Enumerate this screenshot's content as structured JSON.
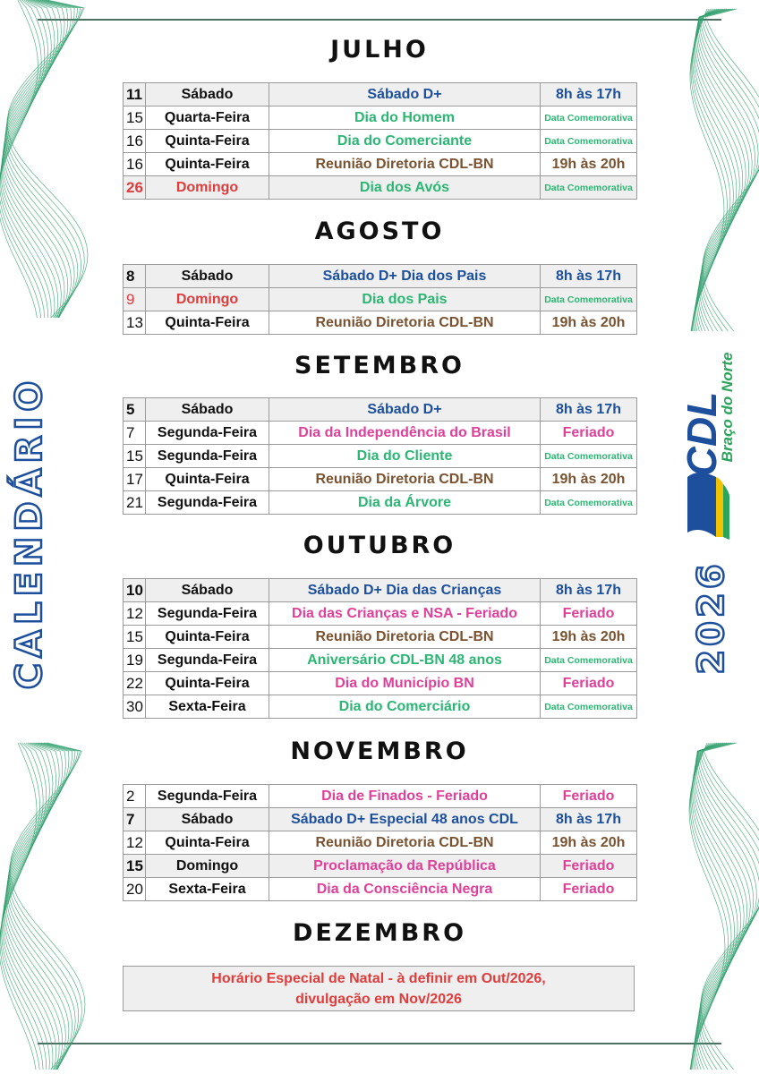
{
  "colors": {
    "sabado": "#1c4f9c",
    "comemorativa": "#2bb673",
    "reuniao": "#7a5230",
    "feriado": "#e0409a",
    "domingo": "#e03c3c",
    "text": "#111111",
    "wave": "#2e9e6b"
  },
  "side_title": "CALENDÁRIO",
  "year": "2026",
  "logo": {
    "name": "CDL",
    "subtitle": "Braço do Norte"
  },
  "months": [
    {
      "title": "JULHO",
      "rows": [
        {
          "day": "11",
          "weekday": "Sábado",
          "event": "Sábado D+",
          "time": "8h às 17h",
          "type": "sabado",
          "shaded": true,
          "day_bold": true
        },
        {
          "day": "15",
          "weekday": "Quarta-Feira",
          "event": "Dia do Homem",
          "time": "Data Comemorativa",
          "type": "comemorativa"
        },
        {
          "day": "16",
          "weekday": "Quinta-Feira",
          "event": "Dia do Comerciante",
          "time": "Data Comemorativa",
          "type": "comemorativa"
        },
        {
          "day": "16",
          "weekday": "Quinta-Feira",
          "event": "Reunião Diretoria CDL-BN",
          "time": "19h às 20h",
          "type": "reuniao"
        },
        {
          "day": "26",
          "weekday": "Domingo",
          "event": "Dia dos Avós",
          "time": "Data Comemorativa",
          "type": "comemorativa",
          "shaded": true,
          "day_bold": true,
          "red": true
        }
      ]
    },
    {
      "title": "AGOSTO",
      "rows": [
        {
          "day": "8",
          "weekday": "Sábado",
          "event": "Sábado D+ Dia dos Pais",
          "time": "8h às 17h",
          "type": "sabado",
          "shaded": true,
          "day_bold": true
        },
        {
          "day": "9",
          "weekday": "Domingo",
          "event": "Dia dos Pais",
          "time": "Data Comemorativa",
          "type": "comemorativa",
          "shaded": true,
          "red": true
        },
        {
          "day": "13",
          "weekday": "Quinta-Feira",
          "event": "Reunião Diretoria CDL-BN",
          "time": "19h às 20h",
          "type": "reuniao"
        }
      ]
    },
    {
      "title": "SETEMBRO",
      "rows": [
        {
          "day": "5",
          "weekday": "Sábado",
          "event": "Sábado D+",
          "time": "8h às 17h",
          "type": "sabado",
          "shaded": true,
          "day_bold": true
        },
        {
          "day": "7",
          "weekday": "Segunda-Feira",
          "event": "Dia da Independência do Brasil",
          "time": "Feriado",
          "type": "feriado"
        },
        {
          "day": "15",
          "weekday": "Segunda-Feira",
          "event": "Dia do Cliente",
          "time": "Data Comemorativa",
          "type": "comemorativa"
        },
        {
          "day": "17",
          "weekday": "Quinta-Feira",
          "event": "Reunião Diretoria CDL-BN",
          "time": "19h às 20h",
          "type": "reuniao"
        },
        {
          "day": "21",
          "weekday": "Segunda-Feira",
          "event": "Dia da Árvore",
          "time": "Data Comemorativa",
          "type": "comemorativa"
        }
      ]
    },
    {
      "title": "OUTUBRO",
      "rows": [
        {
          "day": "10",
          "weekday": "Sábado",
          "event": "Sábado D+ Dia das Crianças",
          "time": "8h às 17h",
          "type": "sabado",
          "shaded": true,
          "day_bold": true
        },
        {
          "day": "12",
          "weekday": "Segunda-Feira",
          "event": "Dia das Crianças e NSA - Feriado",
          "time": "Feriado",
          "type": "feriado"
        },
        {
          "day": "15",
          "weekday": "Quinta-Feira",
          "event": "Reunião Diretoria CDL-BN",
          "time": "19h às 20h",
          "type": "reuniao"
        },
        {
          "day": "19",
          "weekday": "Segunda-Feira",
          "event": "Aniversário CDL-BN 48 anos",
          "time": "Data Comemorativa",
          "type": "comemorativa"
        },
        {
          "day": "22",
          "weekday": "Quinta-Feira",
          "event": "Dia do Município BN",
          "time": "Feriado",
          "type": "feriado"
        },
        {
          "day": "30",
          "weekday": "Sexta-Feira",
          "event": "Dia do Comerciário",
          "time": "Data Comemorativa",
          "type": "comemorativa"
        }
      ]
    },
    {
      "title": "NOVEMBRO",
      "rows": [
        {
          "day": "2",
          "weekday": "Segunda-Feira",
          "event": "Dia de Finados - Feriado",
          "time": "Feriado",
          "type": "feriado"
        },
        {
          "day": "7",
          "weekday": "Sábado",
          "event": "Sábado D+ Especial 48 anos CDL",
          "time": "8h às 17h",
          "type": "sabado",
          "shaded": true,
          "day_bold": true
        },
        {
          "day": "12",
          "weekday": "Quinta-Feira",
          "event": "Reunião Diretoria CDL-BN",
          "time": "19h às 20h",
          "type": "reuniao"
        },
        {
          "day": "15",
          "weekday": "Domingo",
          "event": "Proclamação da República",
          "time": "Feriado",
          "type": "feriado",
          "shaded": true,
          "day_bold": true
        },
        {
          "day": "20",
          "weekday": "Sexta-Feira",
          "event": "Dia da Consciência Negra",
          "time": "Feriado",
          "type": "feriado"
        }
      ]
    },
    {
      "title": "DEZEMBRO",
      "note_line1": "Horário Especial de Natal - à definir em Out/2026,",
      "note_line2": "divulgação em Nov/2026",
      "rows": []
    }
  ]
}
